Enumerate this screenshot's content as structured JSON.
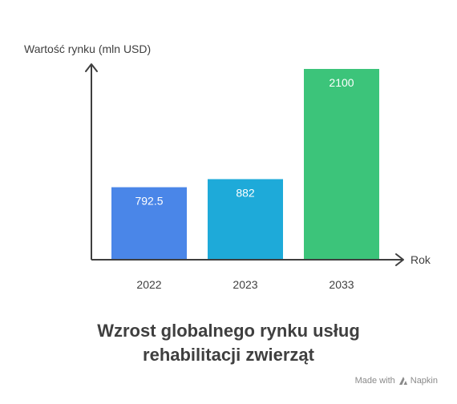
{
  "chart_data": {
    "type": "bar",
    "categories": [
      "2022",
      "2023",
      "2033"
    ],
    "values": [
      792.5,
      882,
      2100
    ],
    "value_labels": [
      "792.5",
      "882",
      "2100"
    ],
    "ylabel": "Wartość rynku (mln USD)",
    "xlabel": "Rok",
    "title_lines": [
      "Wzrost globalnego rynku usług",
      "rehabilitacji zwierząt"
    ],
    "ylim": [
      0,
      2100
    ],
    "grid": false,
    "bar_colors": [
      "#4a86e8",
      "#1eaad9",
      "#3cc47a"
    ]
  },
  "footer": {
    "made_with": "Made with",
    "brand": "Napkin",
    "brand_icon": "napkin-logo-icon"
  }
}
